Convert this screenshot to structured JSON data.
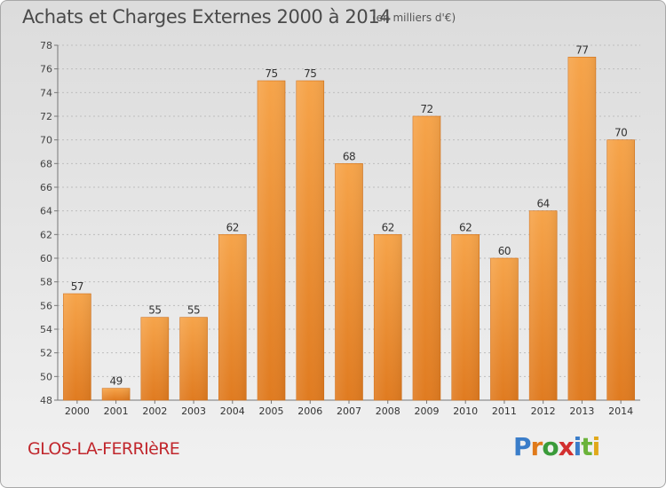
{
  "title": "Achats et Charges Externes 2000 à 2014",
  "subtitle": "(en milliers d'€)",
  "commune": "GLOS-LA-FERRIèRE",
  "logo": {
    "text": "Proxiti",
    "letter_colors": [
      "#3a7dc9",
      "#e07a1a",
      "#3a9b3a",
      "#d22f2f",
      "#3a7dc9",
      "#6bb33a",
      "#e0a81a"
    ]
  },
  "colors": {
    "bar_light": "#f6a44a",
    "bar_dark": "#e07b20",
    "accent": "#c1272d"
  },
  "chart_data": {
    "type": "bar",
    "categories": [
      "2000",
      "2001",
      "2002",
      "2003",
      "2004",
      "2005",
      "2006",
      "2007",
      "2008",
      "2009",
      "2010",
      "2011",
      "2012",
      "2013",
      "2014"
    ],
    "values": [
      57,
      49,
      55,
      55,
      62,
      75,
      75,
      68,
      62,
      72,
      62,
      60,
      64,
      77,
      70
    ],
    "ylim": [
      48,
      78
    ],
    "yticks": [
      48,
      50,
      52,
      54,
      56,
      58,
      60,
      62,
      64,
      66,
      68,
      70,
      72,
      74,
      76,
      78
    ],
    "grid": true,
    "xlabel": "",
    "ylabel": ""
  }
}
